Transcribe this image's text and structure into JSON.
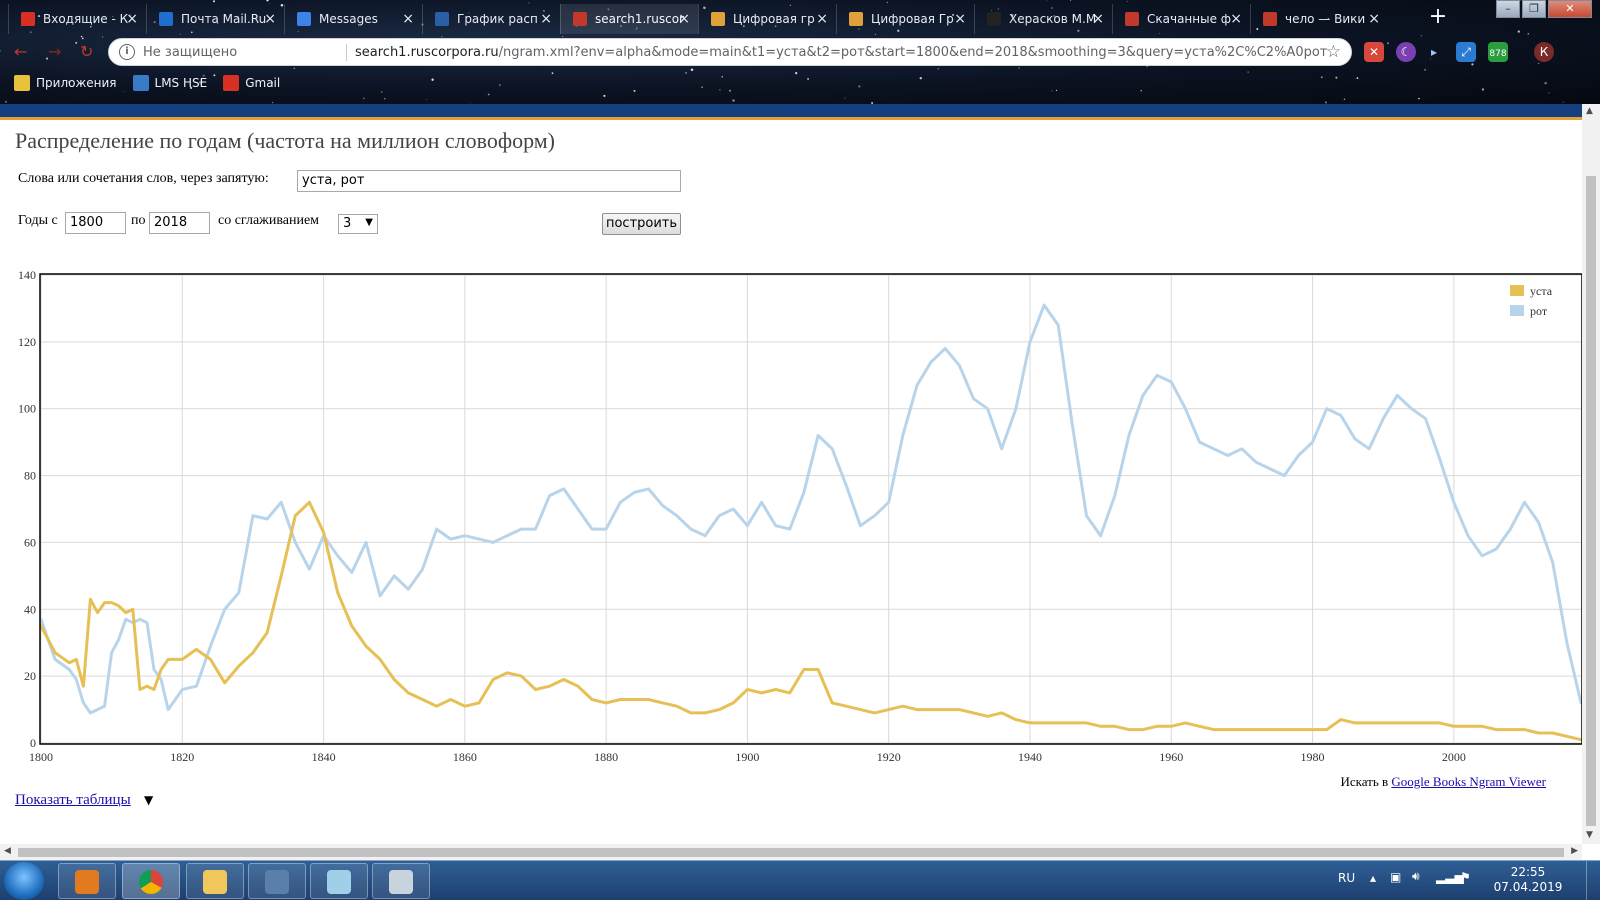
{
  "browser": {
    "tabs": [
      {
        "label": "Входящие - К",
        "color": "#d93025"
      },
      {
        "label": "Почта Mail.Ru",
        "color": "#1f6fd1"
      },
      {
        "label": "Messages",
        "color": "#3c82e8"
      },
      {
        "label": "График расп",
        "color": "#2a5fa8"
      },
      {
        "label": "search1.ruscor",
        "color": "#c0392b"
      },
      {
        "label": "Цифровая гр",
        "color": "#e0a13a"
      },
      {
        "label": "Цифровая Гр",
        "color": "#e0a13a"
      },
      {
        "label": "Херасков М.М",
        "color": "#222222"
      },
      {
        "label": "Скачанные ф",
        "color": "#c0392b"
      },
      {
        "label": "чело — Вики",
        "color": "#c0392b"
      }
    ],
    "active_tab_index": 4,
    "tab_close_glyph": "×",
    "newtab_glyph": "+",
    "address": {
      "security_label": "Не защищено",
      "url_host": "search1.ruscorpora.ru",
      "url_path": "/ngram.xml?env=alpha&mode=main&t1=уста&t2=рот&start=1800&end=2018&smoothing=3&query=уста%2C%C2%A0рот"
    },
    "extension_badge": "878",
    "profile_letter": "К",
    "bookmarks": [
      {
        "label": "Приложения",
        "icon": "apps-grid-icon",
        "color": "#e8c23a"
      },
      {
        "label": "LMS HSE",
        "icon": "lms-icon",
        "color": "#3a78c8"
      },
      {
        "label": "Gmail",
        "icon": "gmail-icon",
        "color": "#d93025"
      }
    ]
  },
  "page": {
    "title": "Распределение по годам (частота на миллион словоформ)",
    "words_label": "Слова или сочетания слов, через запятую:",
    "words_value": "уста, рот",
    "years_from_label": "Годы с",
    "years_to_label": "по",
    "year_start": "1800",
    "year_end": "2018",
    "smoothing_label": "со сглаживанием",
    "smoothing_value": "3",
    "build_button": "построить",
    "search_in_prefix": "Искать в",
    "search_in_link": "Google Books Ngram Viewer",
    "show_tables": "Показать таблицы",
    "show_tables_arrow": "▼"
  },
  "chart_data": {
    "type": "line",
    "title": "",
    "xlabel": "",
    "ylabel": "",
    "xlim": [
      1800,
      2018
    ],
    "ylim": [
      0,
      140
    ],
    "x_ticks": [
      1800,
      1820,
      1840,
      1860,
      1880,
      1900,
      1920,
      1940,
      1960,
      1980,
      2000
    ],
    "y_ticks": [
      0,
      20,
      40,
      60,
      80,
      100,
      120,
      140
    ],
    "grid": true,
    "legend_position": "top-right",
    "series": [
      {
        "name": "уста",
        "color": "#e6bf55",
        "x": [
          1800,
          1802,
          1804,
          1805,
          1806,
          1807,
          1808,
          1809,
          1810,
          1811,
          1812,
          1813,
          1814,
          1815,
          1816,
          1817,
          1818,
          1820,
          1822,
          1824,
          1826,
          1828,
          1830,
          1832,
          1834,
          1836,
          1838,
          1840,
          1842,
          1844,
          1846,
          1848,
          1850,
          1852,
          1854,
          1856,
          1858,
          1860,
          1862,
          1864,
          1866,
          1868,
          1870,
          1872,
          1874,
          1876,
          1878,
          1880,
          1882,
          1884,
          1886,
          1888,
          1890,
          1892,
          1894,
          1896,
          1898,
          1900,
          1902,
          1904,
          1906,
          1908,
          1910,
          1912,
          1914,
          1916,
          1918,
          1920,
          1922,
          1924,
          1926,
          1928,
          1930,
          1932,
          1934,
          1936,
          1938,
          1940,
          1942,
          1944,
          1946,
          1948,
          1950,
          1952,
          1954,
          1956,
          1958,
          1960,
          1962,
          1964,
          1966,
          1968,
          1970,
          1972,
          1974,
          1976,
          1978,
          1980,
          1982,
          1984,
          1986,
          1988,
          1990,
          1992,
          1994,
          1996,
          1998,
          2000,
          2002,
          2004,
          2006,
          2008,
          2010,
          2012,
          2014,
          2016,
          2018
        ],
        "y": [
          35,
          27,
          24,
          25,
          17,
          43,
          39,
          42,
          42,
          41,
          39,
          40,
          16,
          17,
          16,
          22,
          25,
          25,
          28,
          25,
          18,
          23,
          27,
          33,
          50,
          68,
          72,
          63,
          45,
          35,
          29,
          25,
          19,
          15,
          13,
          11,
          13,
          11,
          12,
          19,
          21,
          20,
          16,
          17,
          19,
          17,
          13,
          12,
          13,
          13,
          13,
          12,
          11,
          9,
          9,
          10,
          12,
          16,
          15,
          16,
          15,
          22,
          22,
          12,
          11,
          10,
          9,
          10,
          11,
          10,
          10,
          10,
          10,
          9,
          8,
          9,
          7,
          6,
          6,
          6,
          6,
          6,
          5,
          5,
          4,
          4,
          5,
          5,
          6,
          5,
          4,
          4,
          4,
          4,
          4,
          4,
          4,
          4,
          4,
          7,
          6,
          6,
          6,
          6,
          6,
          6,
          6,
          5,
          5,
          5,
          4,
          4,
          4,
          3,
          3,
          2,
          1
        ]
      },
      {
        "name": "рот",
        "color": "#b8d4ea",
        "x": [
          1800,
          1802,
          1804,
          1805,
          1806,
          1807,
          1808,
          1809,
          1810,
          1811,
          1812,
          1813,
          1814,
          1815,
          1816,
          1817,
          1818,
          1820,
          1822,
          1824,
          1826,
          1828,
          1830,
          1832,
          1834,
          1836,
          1838,
          1840,
          1842,
          1844,
          1846,
          1848,
          1850,
          1852,
          1854,
          1856,
          1858,
          1860,
          1862,
          1864,
          1866,
          1868,
          1870,
          1872,
          1874,
          1876,
          1878,
          1880,
          1882,
          1884,
          1886,
          1888,
          1890,
          1892,
          1894,
          1896,
          1898,
          1900,
          1902,
          1904,
          1906,
          1908,
          1910,
          1912,
          1914,
          1916,
          1918,
          1920,
          1922,
          1924,
          1926,
          1928,
          1930,
          1932,
          1934,
          1936,
          1938,
          1940,
          1942,
          1944,
          1946,
          1948,
          1950,
          1952,
          1954,
          1956,
          1958,
          1960,
          1962,
          1964,
          1966,
          1968,
          1970,
          1972,
          1974,
          1976,
          1978,
          1980,
          1982,
          1984,
          1986,
          1988,
          1990,
          1992,
          1994,
          1996,
          1998,
          2000,
          2002,
          2004,
          2006,
          2008,
          2010,
          2012,
          2014,
          2016,
          2018
        ],
        "y": [
          37,
          25,
          22,
          19,
          12,
          9,
          10,
          11,
          27,
          31,
          37,
          36,
          37,
          36,
          22,
          19,
          10,
          16,
          17,
          29,
          40,
          45,
          68,
          67,
          72,
          60,
          52,
          62,
          56,
          51,
          60,
          44,
          50,
          46,
          52,
          64,
          61,
          62,
          61,
          60,
          62,
          64,
          64,
          74,
          76,
          70,
          64,
          64,
          72,
          75,
          76,
          71,
          68,
          64,
          62,
          68,
          70,
          65,
          72,
          65,
          64,
          75,
          92,
          88,
          77,
          65,
          68,
          72,
          92,
          107,
          114,
          118,
          113,
          103,
          100,
          88,
          100,
          120,
          131,
          125,
          95,
          68,
          62,
          74,
          92,
          104,
          110,
          108,
          100,
          90,
          88,
          86,
          88,
          84,
          82,
          80,
          86,
          90,
          100,
          98,
          91,
          88,
          97,
          104,
          100,
          97,
          85,
          72,
          62,
          56,
          58,
          64,
          72,
          66,
          54,
          30,
          12
        ]
      }
    ]
  },
  "taskbar": {
    "lang": "RU",
    "time": "22:55",
    "date": "07.04.2019"
  }
}
